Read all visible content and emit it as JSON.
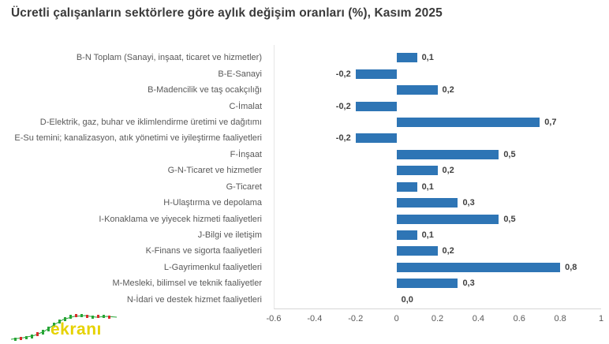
{
  "title": "Ücretli çalışanların sektörlere göre aylık değişim oranları (%), Kasım 2025",
  "logo": {
    "text": "ekranı"
  },
  "colors": {
    "bar": "#2e75b5",
    "title_text": "#3a3a3a",
    "category_text": "#595959",
    "value_text": "#404040",
    "tick_text": "#595959",
    "axis_line": "#d6d6d6",
    "logo_yellow": "#e6d200",
    "logo_green": "#27a536",
    "logo_red": "#d92b2b"
  },
  "chart_data": {
    "type": "bar",
    "orientation": "horizontal",
    "title": "Ücretli çalışanların sektörlere göre aylık değişim oranları (%), Kasım 2025",
    "xlabel": "",
    "ylabel": "",
    "xlim": [
      -0.6,
      1
    ],
    "grid": false,
    "legend": "none",
    "categories": [
      "B-N Toplam (Sanayi, inşaat, ticaret ve hizmetler)",
      "B-E-Sanayi",
      "B-Madencilik ve taş ocakçılığı",
      "C-İmalat",
      "D-Elektrik, gaz, buhar ve iklimlendirme üretimi ve dağıtımı",
      "E-Su temini; kanalizasyon, atık yönetimi ve iyileştirme faaliyetleri",
      "F-İnşaat",
      "G-N-Ticaret ve hizmetler",
      "G-Ticaret",
      "H-Ulaştırma ve depolama",
      "I-Konaklama ve yiyecek hizmeti faaliyetleri",
      "J-Bilgi ve iletişim",
      "K-Finans ve sigorta faaliyetleri",
      "L-Gayrimenkul faaliyetleri",
      "M-Mesleki, bilimsel ve teknik faaliyetler",
      "N-İdari ve destek hizmet faaliyetleri"
    ],
    "values": [
      0.1,
      -0.2,
      0.2,
      -0.2,
      0.7,
      -0.2,
      0.5,
      0.2,
      0.1,
      0.3,
      0.5,
      0.1,
      0.2,
      0.8,
      0.3,
      0.0
    ],
    "value_labels": [
      "0,1",
      "-0,2",
      "0,2",
      "-0,2",
      "0,7",
      "-0,2",
      "0,5",
      "0,2",
      "0,1",
      "0,3",
      "0,5",
      "0,1",
      "0,2",
      "0,8",
      "0,3",
      "0,0"
    ],
    "xticks": [
      "-0.6",
      "-0.4",
      "-0.2",
      "0",
      "0.2",
      "0.4",
      "0.6",
      "0.8",
      "1"
    ],
    "xtick_values": [
      -0.6,
      -0.4,
      -0.2,
      0,
      0.2,
      0.4,
      0.6,
      0.8,
      1
    ]
  }
}
